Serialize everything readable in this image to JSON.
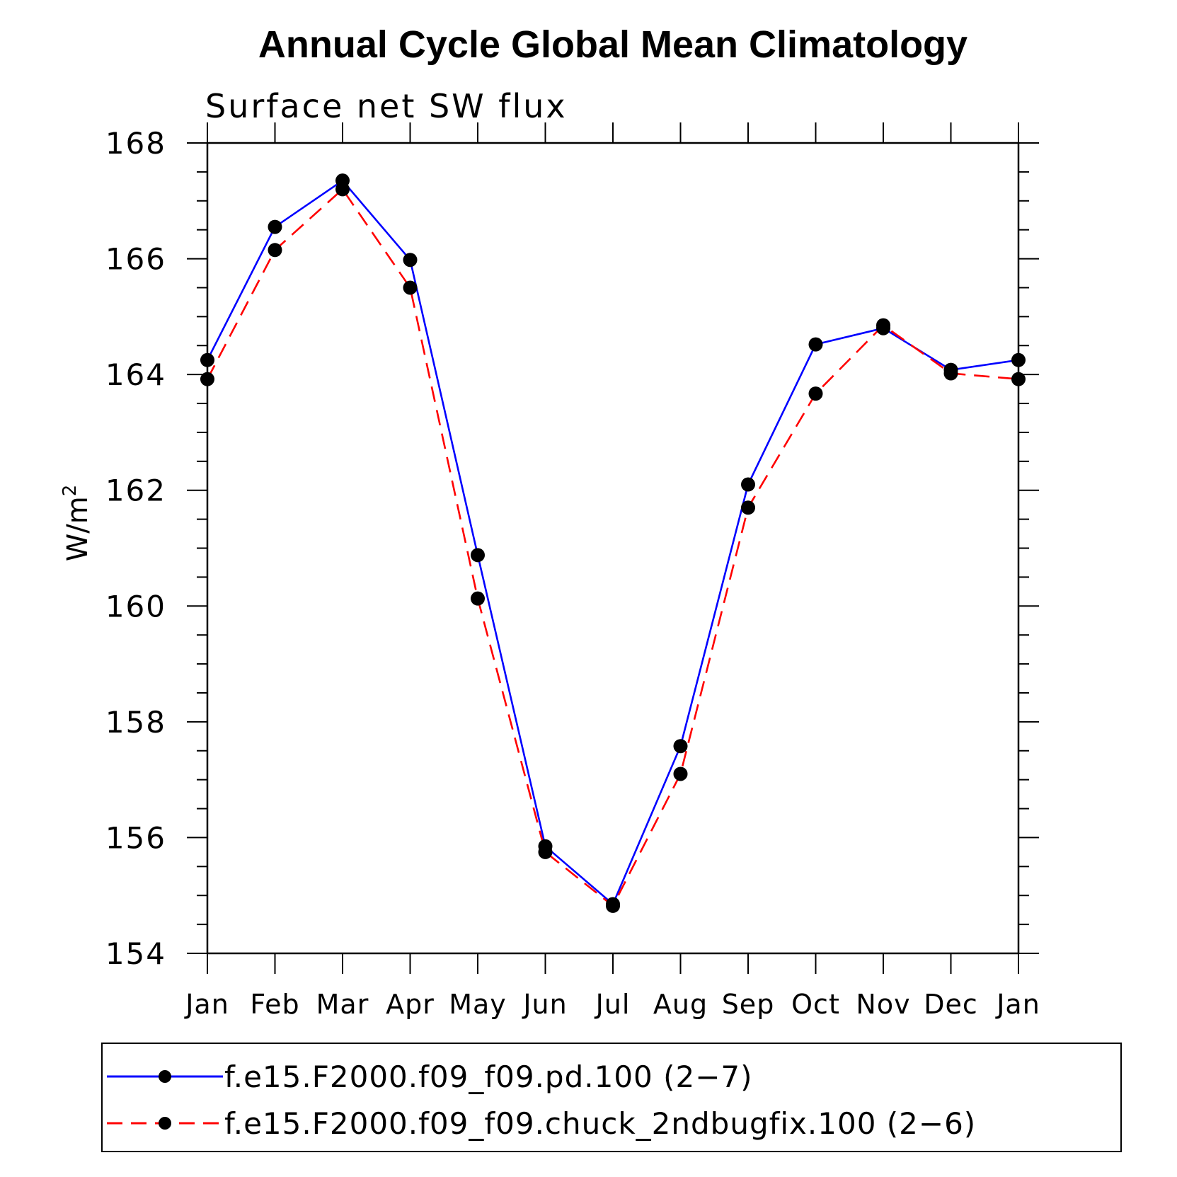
{
  "chart_data": {
    "type": "line",
    "title": "Annual Cycle Global Mean Climatology",
    "subtitle": "Surface net SW flux",
    "ylabel": "W/m",
    "ylabel_sup": "2",
    "xlabel": "",
    "ylim": [
      154,
      168
    ],
    "yticks": [
      "154",
      "156",
      "158",
      "160",
      "162",
      "164",
      "166",
      "168"
    ],
    "categories": [
      "Jan",
      "Feb",
      "Mar",
      "Apr",
      "May",
      "Jun",
      "Jul",
      "Aug",
      "Sep",
      "Oct",
      "Nov",
      "Dec",
      "Jan"
    ],
    "series": [
      {
        "name": "f.e15.F2000.f09_f09.pd.100 (2−7)",
        "color": "#0000ff",
        "style": "solid",
        "values": [
          164.25,
          166.55,
          167.35,
          165.98,
          160.88,
          155.85,
          154.85,
          157.58,
          162.1,
          164.52,
          164.8,
          164.08,
          164.25
        ]
      },
      {
        "name": "f.e15.F2000.f09_f09.chuck_2ndbugfix.100 (2−6)",
        "color": "#ff0000",
        "style": "dashed",
        "values": [
          163.92,
          166.15,
          167.2,
          165.5,
          160.13,
          155.75,
          154.82,
          157.1,
          161.7,
          163.67,
          164.85,
          164.02,
          163.92
        ]
      }
    ],
    "legend_position": "bottom"
  }
}
